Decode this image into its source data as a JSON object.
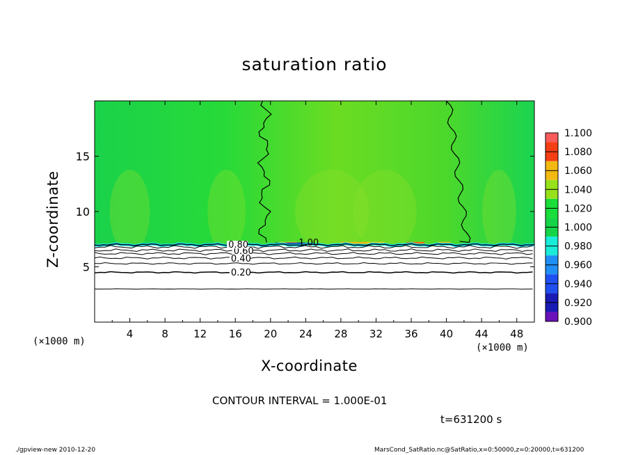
{
  "chart_data": {
    "type": "heatmap",
    "title": "saturation ratio",
    "xlabel": "X-coordinate",
    "ylabel": "Z-coordinate",
    "x_unit_label": "(×1000 m)",
    "xlim": [
      0,
      50
    ],
    "ylim": [
      0,
      20
    ],
    "x_ticks": [
      4,
      8,
      12,
      16,
      20,
      24,
      28,
      32,
      36,
      40,
      44,
      48
    ],
    "x_tick_labels": [
      "4",
      "8",
      "12",
      "16",
      "20",
      "24",
      "28",
      "32",
      "36",
      "40",
      "44",
      "48"
    ],
    "y_ticks": [
      5,
      10,
      15
    ],
    "y_tick_labels": [
      "5",
      "10",
      "15"
    ],
    "colorbar": {
      "levels": [
        0.9,
        0.92,
        0.94,
        0.96,
        0.98,
        1.0,
        1.02,
        1.04,
        1.06,
        1.08,
        1.1
      ],
      "labels": [
        "0.900",
        "0.920",
        "0.940",
        "0.960",
        "0.980",
        "1.000",
        "1.020",
        "1.040",
        "1.060",
        "1.080",
        "1.100"
      ],
      "colors": [
        "#6a11b8",
        "#1a1ab4",
        "#1f4ff0",
        "#1f8ff5",
        "#19ecd9",
        "#16d448",
        "#19de3a",
        "#96e11a",
        "#f3b912",
        "#f43e14",
        "#f95b5b",
        "#fbb4b4"
      ]
    },
    "contour_labels": [
      "0.20",
      "0.40",
      "0.60",
      "0.80",
      "1.00"
    ],
    "saturation_boundary_z": 7.0,
    "unsaturated_contour_z": [
      3.0,
      4.5,
      5.3,
      5.8,
      6.2,
      6.5,
      6.8
    ],
    "contour_1_00_left_x": 19.3,
    "contour_1_00_right_x": 41.5
  },
  "annotations": {
    "contour_interval": "CONTOUR INTERVAL = 1.000E-01",
    "time": "t=631200 s",
    "footer_left": "./gpview-new  2010-12-20",
    "footer_right": "MarsCond_SatRatio.nc@SatRatio,x=0:50000,z=0:20000,t=631200"
  }
}
